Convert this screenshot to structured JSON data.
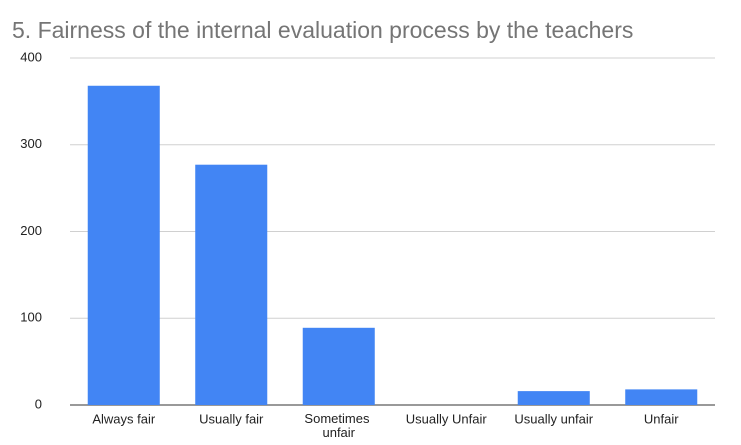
{
  "chart_data": {
    "type": "bar",
    "title": "5. Fairness of the internal evaluation process by the teachers",
    "categories": [
      "Always fair",
      "Usually fair",
      "Sometimes unfair",
      "Usually Unfair",
      "Usually unfair",
      "Unfair"
    ],
    "values": [
      368,
      277,
      89,
      0,
      16,
      18
    ],
    "color": "#4285f4",
    "ylim": [
      0,
      400
    ],
    "yticks": [
      0,
      100,
      200,
      300,
      400
    ],
    "grid": true
  }
}
